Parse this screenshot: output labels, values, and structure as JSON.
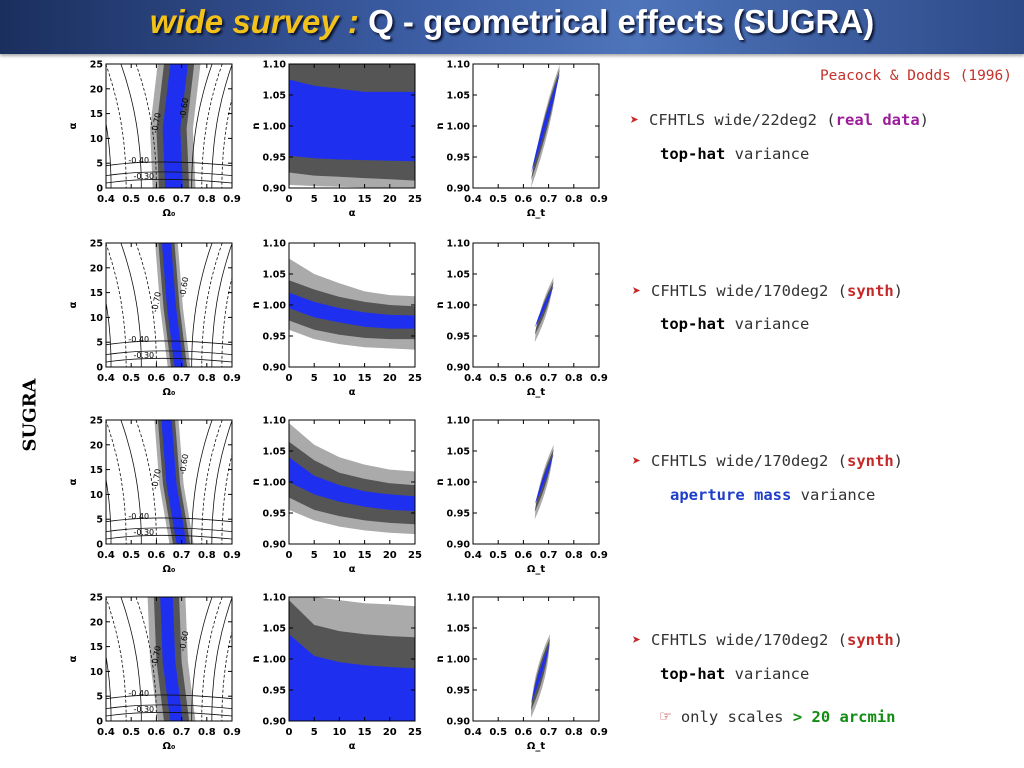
{
  "title": {
    "italic_part": "wide survey :",
    "main_part": " Q - geometrical effects (SUGRA)"
  },
  "side_label": "SUGRA",
  "reference": "Peacock & Dodds (1996)",
  "notes": [
    {
      "marker": "➤",
      "line1_prefix": "CFHTLS wide/22deg2 (",
      "line1_highlight": "real data",
      "line1_suffix": ")",
      "line2_highlight": "top-hat",
      "line2_suffix": " variance"
    },
    {
      "marker": "➤",
      "line1_prefix": "CFHTLS wide/170deg2 (",
      "line1_highlight": "synth",
      "line1_suffix": ")",
      "line2_highlight": "top-hat",
      "line2_suffix": " variance"
    },
    {
      "marker": "➤",
      "line1_prefix": "CFHTLS wide/170deg2 (",
      "line1_highlight": "synth",
      "line1_suffix": ")",
      "line2_highlight": "aperture mass",
      "line2_suffix": " variance"
    },
    {
      "marker": "➤",
      "line1_prefix": "CFHTLS wide/170deg2 (",
      "line1_highlight": "synth",
      "line1_suffix": ")",
      "line2_highlight": "top-hat",
      "line2_suffix": " variance",
      "line3_marker": "☞",
      "line3_prefix": "only scales ",
      "line3_highlight": "> 20 arcmin"
    }
  ],
  "colors": {
    "confidence_1sigma": "#1f2ff0",
    "confidence_2sigma": "#555555",
    "confidence_3sigma": "#aaaaaa",
    "title_bar": "#3a5aa0",
    "title_italic": "#f2c21b"
  },
  "chart_data": [
    {
      "type": "contour",
      "row": 1,
      "panel": "omega-alpha",
      "xlabel": "Ω₀",
      "ylabel": "α",
      "xlim": [
        0.4,
        0.9
      ],
      "ylim": [
        0,
        25
      ],
      "xticks": [
        "0.4",
        "0.5",
        "0.6",
        "0.7",
        "0.8",
        "0.9"
      ],
      "yticks": [
        "0",
        "5",
        "10",
        "15",
        "20",
        "25"
      ],
      "contour_labels": [
        "-0.70",
        "-0.60",
        "-0.40",
        "-0.30"
      ],
      "band_center": [
        {
          "x": 0.69,
          "y": 25
        },
        {
          "x": 0.66,
          "y": 12
        },
        {
          "x": 0.67,
          "y": 0
        }
      ],
      "band_width": {
        "sigma1": 0.035,
        "sigma2": 0.06,
        "sigma3": 0.085
      }
    },
    {
      "type": "area",
      "row": 1,
      "panel": "alpha-n",
      "xlabel": "α",
      "ylabel": "n",
      "xlim": [
        0,
        25
      ],
      "ylim": [
        0.9,
        1.1
      ],
      "xticks": [
        "0",
        "5",
        "10",
        "15",
        "20",
        "25"
      ],
      "yticks": [
        "0.90",
        "0.95",
        "1.00",
        "1.05",
        "1.10"
      ],
      "x": [
        0,
        5,
        10,
        15,
        20,
        25
      ],
      "sigma1": {
        "upper": [
          1.075,
          1.065,
          1.06,
          1.055,
          1.055,
          1.055
        ],
        "lower": [
          0.952,
          0.948,
          0.946,
          0.945,
          0.944,
          0.943
        ]
      },
      "sigma2": {
        "upper": [
          1.1,
          1.1,
          1.1,
          1.1,
          1.1,
          1.1
        ],
        "lower": [
          0.925,
          0.92,
          0.918,
          0.916,
          0.914,
          0.912
        ]
      },
      "sigma3": {
        "upper": [
          1.1,
          1.1,
          1.1,
          1.1,
          1.1,
          1.1
        ],
        "lower": [
          0.905,
          0.903,
          0.902,
          0.901,
          0.9,
          0.9
        ]
      }
    },
    {
      "type": "contour",
      "row": 1,
      "panel": "omega-n",
      "xlabel": "Ω_t",
      "ylabel": "n",
      "xlim": [
        0.4,
        0.9
      ],
      "ylim": [
        0.9,
        1.1
      ],
      "xticks": [
        "0.4",
        "0.5",
        "0.6",
        "0.7",
        "0.8",
        "0.9"
      ],
      "yticks": [
        "0.90",
        "0.95",
        "1.00",
        "1.05",
        "1.10"
      ],
      "ellipse": {
        "start": [
          0.63,
          0.9
        ],
        "end": [
          0.745,
          1.1
        ],
        "w1": 0.014,
        "w2": 0.022,
        "w3": 0.03
      }
    },
    {
      "type": "contour",
      "row": 2,
      "panel": "omega-alpha",
      "xlabel": "Ω₀",
      "ylabel": "α",
      "xlim": [
        0.4,
        0.9
      ],
      "ylim": [
        0,
        25
      ],
      "xticks": [
        "0.4",
        "0.5",
        "0.6",
        "0.7",
        "0.8",
        "0.9"
      ],
      "yticks": [
        "0",
        "5",
        "10",
        "15",
        "20",
        "25"
      ],
      "contour_labels": [
        "-0.70",
        "-0.60",
        "-0.40",
        "-0.30"
      ],
      "band_center": [
        {
          "x": 0.64,
          "y": 25
        },
        {
          "x": 0.66,
          "y": 12
        },
        {
          "x": 0.69,
          "y": 0
        }
      ],
      "band_width": {
        "sigma1": 0.018,
        "sigma2": 0.032,
        "sigma3": 0.045
      }
    },
    {
      "type": "area",
      "row": 2,
      "panel": "alpha-n",
      "xlabel": "α",
      "ylabel": "n",
      "xlim": [
        0,
        25
      ],
      "ylim": [
        0.9,
        1.1
      ],
      "xticks": [
        "0",
        "5",
        "10",
        "15",
        "20",
        "25"
      ],
      "yticks": [
        "0.90",
        "0.95",
        "1.00",
        "1.05",
        "1.10"
      ],
      "x": [
        0,
        5,
        10,
        15,
        20,
        25
      ],
      "sigma1": {
        "upper": [
          1.02,
          1.005,
          0.995,
          0.988,
          0.984,
          0.983
        ],
        "lower": [
          0.995,
          0.98,
          0.972,
          0.965,
          0.962,
          0.962
        ]
      },
      "sigma2": {
        "upper": [
          1.04,
          1.025,
          1.013,
          1.005,
          1.0,
          0.998
        ],
        "lower": [
          0.975,
          0.96,
          0.952,
          0.947,
          0.945,
          0.945
        ]
      },
      "sigma3": {
        "upper": [
          1.075,
          1.05,
          1.035,
          1.022,
          1.016,
          1.014
        ],
        "lower": [
          0.96,
          0.945,
          0.937,
          0.932,
          0.93,
          0.928
        ]
      }
    },
    {
      "type": "contour",
      "row": 2,
      "panel": "omega-n",
      "xlabel": "Ω_t",
      "ylabel": "n",
      "xlim": [
        0.4,
        0.9
      ],
      "ylim": [
        0.9,
        1.1
      ],
      "xticks": [
        "0.4",
        "0.5",
        "0.6",
        "0.7",
        "0.8",
        "0.9"
      ],
      "yticks": [
        "0.90",
        "0.95",
        "1.00",
        "1.05",
        "1.10"
      ],
      "ellipse": {
        "start": [
          0.645,
          0.94
        ],
        "end": [
          0.72,
          1.045
        ],
        "w1": 0.012,
        "w2": 0.02,
        "w3": 0.028
      }
    },
    {
      "type": "contour",
      "row": 3,
      "panel": "omega-alpha",
      "xlabel": "Ω₀",
      "ylabel": "α",
      "xlim": [
        0.4,
        0.9
      ],
      "ylim": [
        0,
        25
      ],
      "xticks": [
        "0.4",
        "0.5",
        "0.6",
        "0.7",
        "0.8",
        "0.9"
      ],
      "yticks": [
        "0",
        "5",
        "10",
        "15",
        "20",
        "25"
      ],
      "contour_labels": [
        "-0.70",
        "-0.60",
        "-0.40",
        "-0.30"
      ],
      "band_center": [
        {
          "x": 0.64,
          "y": 25
        },
        {
          "x": 0.66,
          "y": 12
        },
        {
          "x": 0.7,
          "y": 0
        }
      ],
      "band_width": {
        "sigma1": 0.02,
        "sigma2": 0.034,
        "sigma3": 0.048
      }
    },
    {
      "type": "area",
      "row": 3,
      "panel": "alpha-n",
      "xlabel": "α",
      "ylabel": "n",
      "xlim": [
        0,
        25
      ],
      "ylim": [
        0.9,
        1.1
      ],
      "xticks": [
        "0",
        "5",
        "10",
        "15",
        "20",
        "25"
      ],
      "yticks": [
        "0.90",
        "0.95",
        "1.00",
        "1.05",
        "1.10"
      ],
      "x": [
        0,
        5,
        10,
        15,
        20,
        25
      ],
      "sigma1": {
        "upper": [
          1.04,
          1.01,
          0.995,
          0.985,
          0.98,
          0.977
        ],
        "lower": [
          1.0,
          0.98,
          0.968,
          0.96,
          0.955,
          0.953
        ]
      },
      "sigma2": {
        "upper": [
          1.065,
          1.035,
          1.015,
          1.005,
          0.998,
          0.995
        ],
        "lower": [
          0.975,
          0.955,
          0.945,
          0.938,
          0.934,
          0.932
        ]
      },
      "sigma3": {
        "upper": [
          1.095,
          1.06,
          1.04,
          1.028,
          1.02,
          1.017
        ],
        "lower": [
          0.955,
          0.938,
          0.928,
          0.922,
          0.918,
          0.916
        ]
      }
    },
    {
      "type": "contour",
      "row": 3,
      "panel": "omega-n",
      "xlabel": "Ω_t",
      "ylabel": "n",
      "xlim": [
        0.4,
        0.9
      ],
      "ylim": [
        0.9,
        1.1
      ],
      "xticks": [
        "0.4",
        "0.5",
        "0.6",
        "0.7",
        "0.8",
        "0.9"
      ],
      "yticks": [
        "0.90",
        "0.95",
        "1.00",
        "1.05",
        "1.10"
      ],
      "ellipse": {
        "start": [
          0.645,
          0.94
        ],
        "end": [
          0.72,
          1.06
        ],
        "w1": 0.012,
        "w2": 0.021,
        "w3": 0.03
      }
    },
    {
      "type": "contour",
      "row": 4,
      "panel": "omega-alpha",
      "xlabel": "Ω₀",
      "ylabel": "α",
      "xlim": [
        0.4,
        0.9
      ],
      "ylim": [
        0,
        25
      ],
      "xticks": [
        "0.4",
        "0.5",
        "0.6",
        "0.7",
        "0.8",
        "0.9"
      ],
      "yticks": [
        "0",
        "5",
        "10",
        "15",
        "20",
        "25"
      ],
      "contour_labels": [
        "-0.70",
        "-0.60",
        "-0.40",
        "-0.30"
      ],
      "band_center": [
        {
          "x": 0.64,
          "y": 25
        },
        {
          "x": 0.65,
          "y": 12
        },
        {
          "x": 0.68,
          "y": 0
        }
      ],
      "band_width": {
        "sigma1": 0.025,
        "sigma2": 0.05,
        "sigma3": 0.075
      }
    },
    {
      "type": "area",
      "row": 4,
      "panel": "alpha-n",
      "xlabel": "α",
      "ylabel": "n",
      "xlim": [
        0,
        25
      ],
      "ylim": [
        0.9,
        1.1
      ],
      "xticks": [
        "0",
        "5",
        "10",
        "15",
        "20",
        "25"
      ],
      "yticks": [
        "0.90",
        "0.95",
        "1.00",
        "1.05",
        "1.10"
      ],
      "x": [
        0,
        5,
        10,
        15,
        20,
        25
      ],
      "sigma1": {
        "upper": [
          1.04,
          1.005,
          0.995,
          0.99,
          0.987,
          0.985
        ],
        "lower": [
          0.9,
          0.9,
          0.9,
          0.9,
          0.9,
          0.9
        ]
      },
      "sigma2": {
        "upper": [
          1.095,
          1.055,
          1.045,
          1.04,
          1.037,
          1.035
        ],
        "lower": [
          0.9,
          0.9,
          0.9,
          0.9,
          0.9,
          0.9
        ]
      },
      "sigma3": {
        "upper": [
          1.1,
          1.1,
          1.095,
          1.09,
          1.088,
          1.085
        ],
        "lower": [
          0.9,
          0.9,
          0.9,
          0.9,
          0.9,
          0.9
        ]
      }
    },
    {
      "type": "contour",
      "row": 4,
      "panel": "omega-n",
      "xlabel": "Ω_t",
      "ylabel": "n",
      "xlim": [
        0.4,
        0.9
      ],
      "ylim": [
        0.9,
        1.1
      ],
      "xticks": [
        "0.4",
        "0.5",
        "0.6",
        "0.7",
        "0.8",
        "0.9"
      ],
      "yticks": [
        "0.90",
        "0.95",
        "1.00",
        "1.05",
        "1.10"
      ],
      "ellipse": {
        "start": [
          0.63,
          0.905
        ],
        "end": [
          0.705,
          1.04
        ],
        "w1": 0.014,
        "w2": 0.026,
        "w3": 0.038
      }
    }
  ]
}
